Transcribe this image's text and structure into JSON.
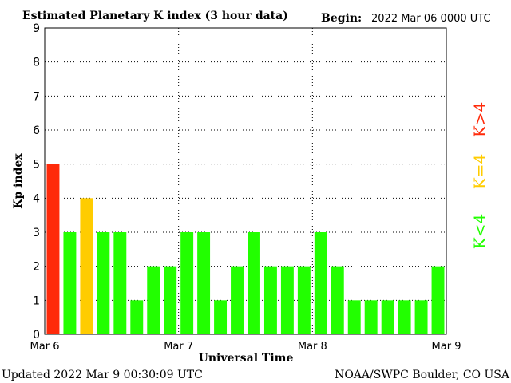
{
  "header": {
    "title": "Estimated Planetary K index (3 hour data)",
    "begin_label": "Begin:",
    "begin_value": "2022 Mar 06 0000 UTC"
  },
  "footer": {
    "updated": "Updated 2022 Mar  9 00:30:09 UTC",
    "source": "NOAA/SWPC Boulder, CO USA"
  },
  "legend": {
    "high": "K>4",
    "equal": "K=4",
    "low": "K<4"
  },
  "colors": {
    "high": "#ff2a0a",
    "equal": "#ffcc00",
    "low": "#22ff00",
    "grid": "#000000",
    "text": "#000000"
  },
  "chart_data": {
    "type": "bar",
    "xlabel": "Universal Time",
    "ylabel": "Kp index",
    "ylim": [
      0,
      9
    ],
    "yticks": [
      "0",
      "1",
      "2",
      "3",
      "4",
      "5",
      "6",
      "7",
      "8",
      "9"
    ],
    "x_tick_labels": [
      "Mar 6",
      "Mar 7",
      "Mar 8",
      "Mar 9"
    ],
    "grid": "dotted",
    "legend_position": "right",
    "values": [
      5,
      3,
      4,
      3,
      3,
      1,
      2,
      2,
      3,
      3,
      1,
      2,
      3,
      2,
      2,
      2,
      3,
      2,
      1,
      1,
      1,
      1,
      1,
      2
    ]
  }
}
